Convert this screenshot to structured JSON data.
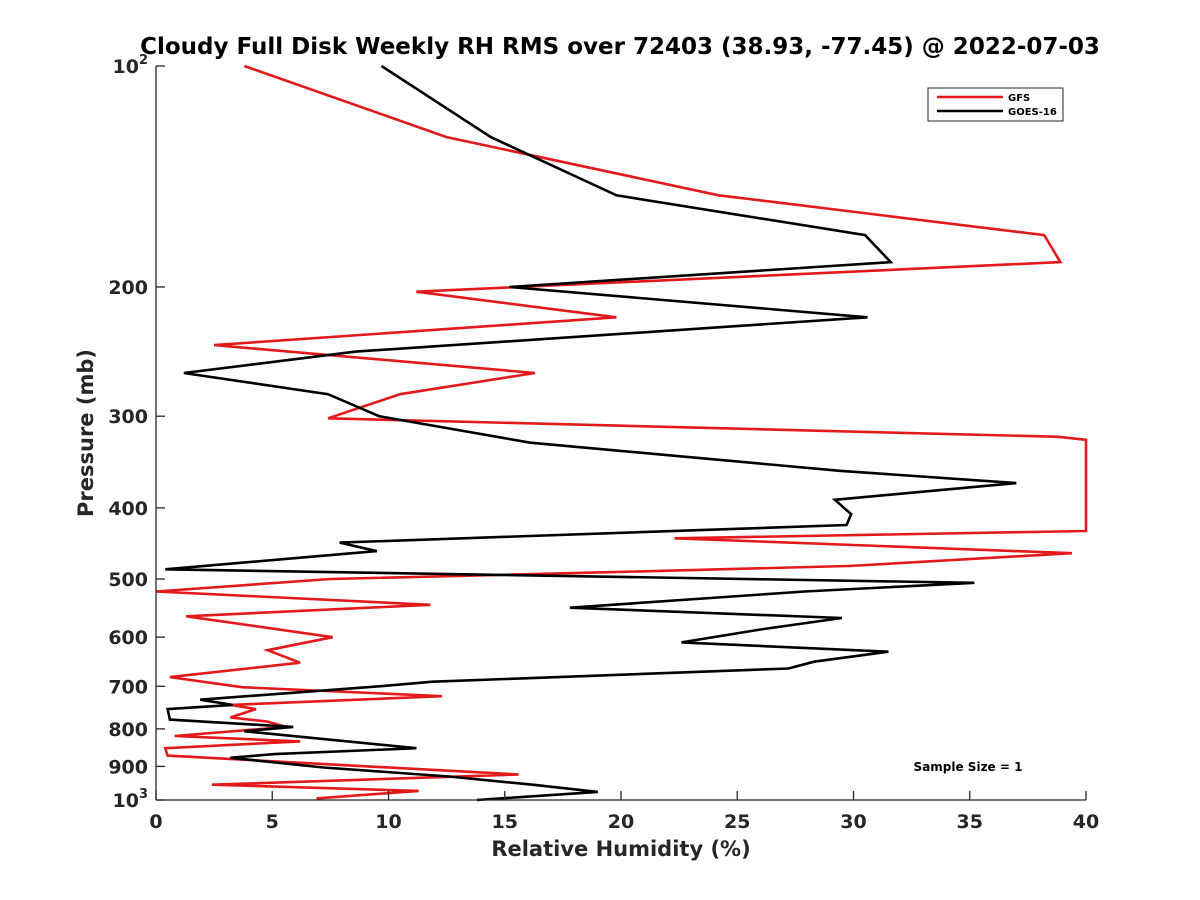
{
  "chart_data": {
    "type": "line",
    "title": "Cloudy Full Disk Weekly RH RMS over 72403 (38.93, -77.45) @ 2022-07-03",
    "xlabel": "Relative Humidity (%)",
    "ylabel": "Pressure (mb)",
    "xlim": [
      0,
      40
    ],
    "ylim": [
      100,
      1000
    ],
    "y_scale": "log",
    "y_reversed": true,
    "x_ticks": [
      "0",
      "5",
      "10",
      "15",
      "20",
      "25",
      "30",
      "35",
      "40"
    ],
    "y_ticks": [
      {
        "value": 100,
        "base": "10",
        "exp": "2"
      },
      {
        "value": 200,
        "base": "200",
        "exp": ""
      },
      {
        "value": 300,
        "base": "300",
        "exp": ""
      },
      {
        "value": 400,
        "base": "400",
        "exp": ""
      },
      {
        "value": 500,
        "base": "500",
        "exp": ""
      },
      {
        "value": 600,
        "base": "600",
        "exp": ""
      },
      {
        "value": 700,
        "base": "700",
        "exp": ""
      },
      {
        "value": 800,
        "base": "800",
        "exp": ""
      },
      {
        "value": 900,
        "base": "900",
        "exp": ""
      },
      {
        "value": 1000,
        "base": "10",
        "exp": "3"
      }
    ],
    "grid": false,
    "legend_position": "top-right",
    "annotation": "Sample Size = 1",
    "series": [
      {
        "name": "GFS",
        "color": "#e31a1c",
        "points": [
          [
            3.8,
            100
          ],
          [
            12.5,
            125
          ],
          [
            24.2,
            150
          ],
          [
            38.2,
            170
          ],
          [
            38.9,
            185
          ],
          [
            11.2,
            203
          ],
          [
            19.8,
            220
          ],
          [
            2.5,
            240
          ],
          [
            16.3,
            262
          ],
          [
            10.5,
            280
          ],
          [
            7.4,
            302
          ],
          [
            38.8,
            320
          ],
          [
            40.0,
            323
          ],
          [
            40.0,
            430
          ],
          [
            22.3,
            440
          ],
          [
            39.4,
            461
          ],
          [
            29.8,
            480
          ],
          [
            18.8,
            490
          ],
          [
            7.5,
            500
          ],
          [
            0.0,
            520
          ],
          [
            11.8,
            542
          ],
          [
            1.3,
            562
          ],
          [
            7.6,
            600
          ],
          [
            4.8,
            625
          ],
          [
            6.2,
            650
          ],
          [
            0.6,
            680
          ],
          [
            3.7,
            702
          ],
          [
            12.3,
            722
          ],
          [
            3.2,
            742
          ],
          [
            4.3,
            752
          ],
          [
            3.2,
            772
          ],
          [
            4.8,
            782
          ],
          [
            5.6,
            795
          ],
          [
            0.8,
            818
          ],
          [
            6.2,
            832
          ],
          [
            0.4,
            850
          ],
          [
            0.5,
            870
          ],
          [
            15.6,
            923
          ],
          [
            2.4,
            953
          ],
          [
            11.3,
            972
          ],
          [
            6.9,
            995
          ]
        ]
      },
      {
        "name": "GOES-16",
        "color": "#000000",
        "points": [
          [
            9.7,
            100
          ],
          [
            14.4,
            125
          ],
          [
            19.8,
            150
          ],
          [
            30.5,
            170
          ],
          [
            31.6,
            185
          ],
          [
            15.2,
            200
          ],
          [
            30.6,
            220
          ],
          [
            8.6,
            245
          ],
          [
            1.2,
            262
          ],
          [
            7.4,
            280
          ],
          [
            9.6,
            300
          ],
          [
            16.1,
            326
          ],
          [
            29.4,
            356
          ],
          [
            37.0,
            370
          ],
          [
            29.2,
            390
          ],
          [
            29.9,
            408
          ],
          [
            29.7,
            422
          ],
          [
            7.9,
            446
          ],
          [
            9.5,
            458
          ],
          [
            0.4,
            485
          ],
          [
            35.2,
            506
          ],
          [
            27.9,
            520
          ],
          [
            17.8,
            547
          ],
          [
            29.5,
            565
          ],
          [
            26.1,
            585
          ],
          [
            22.6,
            610
          ],
          [
            31.5,
            628
          ],
          [
            28.3,
            648
          ],
          [
            27.2,
            662
          ],
          [
            11.9,
            690
          ],
          [
            9.6,
            700
          ],
          [
            1.9,
            730
          ],
          [
            3.3,
            742
          ],
          [
            0.5,
            752
          ],
          [
            0.6,
            777
          ],
          [
            5.9,
            795
          ],
          [
            3.8,
            806
          ],
          [
            11.2,
            850
          ],
          [
            5.1,
            866
          ],
          [
            3.2,
            876
          ],
          [
            7.2,
            903
          ],
          [
            12.6,
            929
          ],
          [
            16.2,
            953
          ],
          [
            19.0,
            975
          ],
          [
            13.8,
            1000
          ]
        ]
      }
    ]
  }
}
